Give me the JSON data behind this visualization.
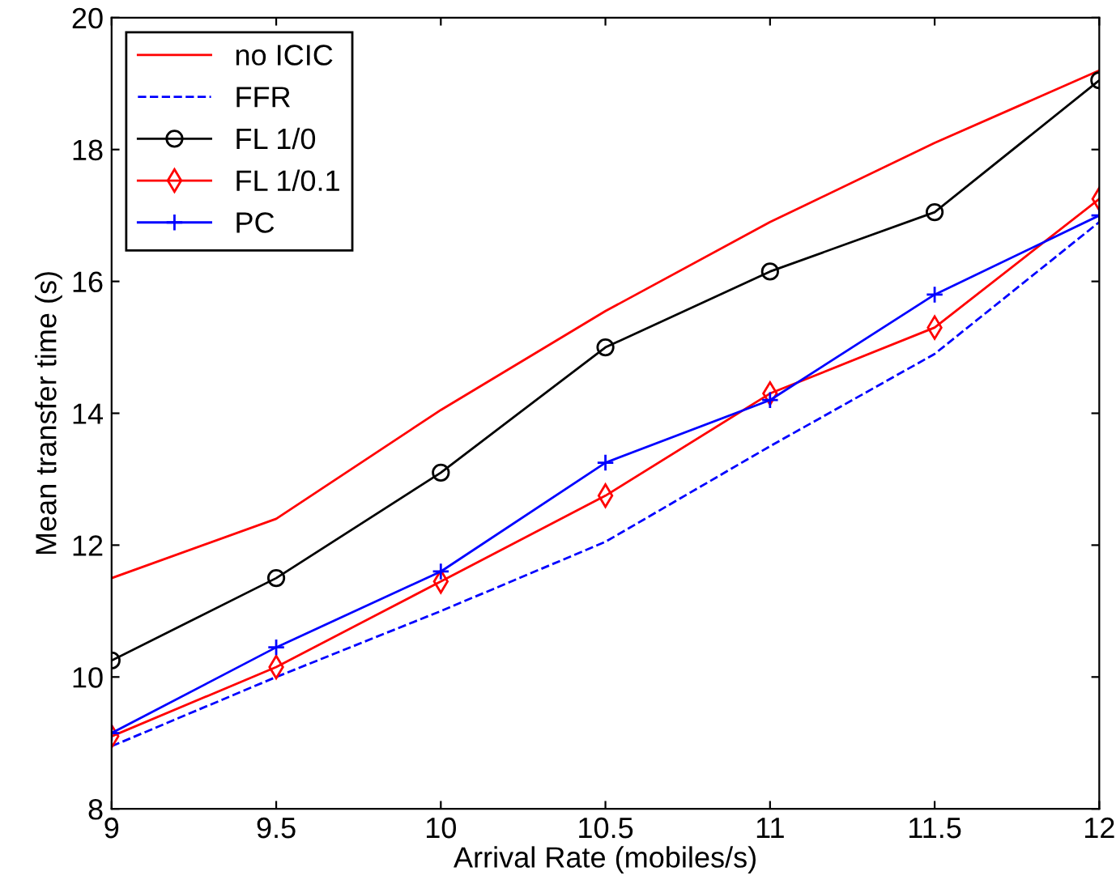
{
  "chart_data": {
    "type": "line",
    "xlabel": "Arrival Rate (mobiles/s)",
    "ylabel": "Mean transfer time (s)",
    "x": [
      9,
      9.5,
      10,
      10.5,
      11,
      11.5,
      12
    ],
    "series": [
      {
        "name": "no ICIC",
        "color": "#ff0000",
        "marker": "none",
        "line_style": "solid",
        "values": [
          11.5,
          12.4,
          14.05,
          15.55,
          16.9,
          18.1,
          19.2
        ]
      },
      {
        "name": "FFR",
        "color": "#0000ff",
        "marker": "none",
        "line_style": "dashed",
        "values": [
          8.95,
          10.0,
          11.0,
          12.05,
          13.5,
          14.9,
          16.9
        ]
      },
      {
        "name": "FL 1/0",
        "color": "#000000",
        "marker": "circle",
        "line_style": "solid",
        "values": [
          10.25,
          11.5,
          13.1,
          15.0,
          16.15,
          17.05,
          19.05
        ]
      },
      {
        "name": "FL 1/0.1",
        "color": "#ff0000",
        "marker": "diamond",
        "line_style": "solid",
        "values": [
          9.1,
          10.15,
          11.45,
          12.75,
          14.3,
          15.3,
          17.25
        ]
      },
      {
        "name": "PC",
        "color": "#0000ff",
        "marker": "cross",
        "line_style": "solid",
        "values": [
          9.15,
          10.45,
          11.6,
          13.25,
          14.2,
          15.8,
          17.0
        ]
      }
    ],
    "xlim": [
      9,
      12
    ],
    "xticks": [
      9,
      9.5,
      10,
      10.5,
      11,
      11.5,
      12
    ],
    "ylim": [
      8,
      20
    ],
    "yticks": [
      8,
      10,
      12,
      14,
      16,
      18,
      20
    ],
    "grid": false,
    "legend": "top left"
  }
}
